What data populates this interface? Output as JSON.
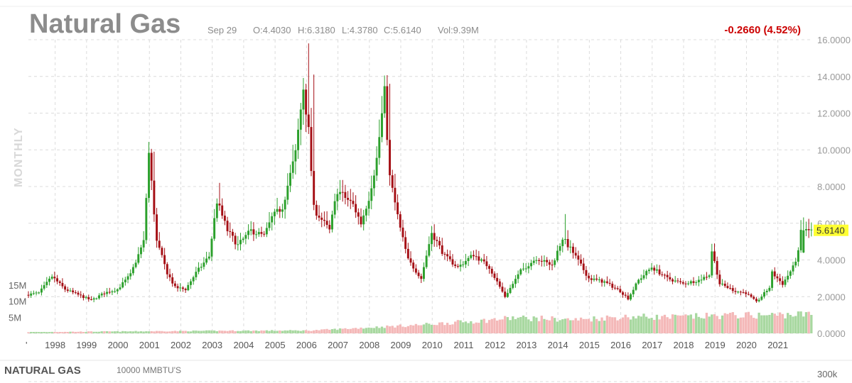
{
  "header": {
    "title": "Natural Gas",
    "date": "Sep 29",
    "open": "O:4.4030",
    "high": "H:6.3180",
    "low": "L:4.3780",
    "close": "C:5.6140",
    "volume": "Vol:9.39M",
    "change": "-0.2660 (4.52%)"
  },
  "sidebar": {
    "interval_label": "MONTHLY"
  },
  "last_price_badge": "5.6140",
  "footer": {
    "instrument": "NATURAL GAS",
    "unit": "10000 MMBTU'S",
    "axis_label": "300k"
  },
  "colors": {
    "up": "#2ca02c",
    "down": "#a50f15",
    "vol_up": "#a8d8a0",
    "vol_down": "#f4b8b8",
    "badge": "#ffff33",
    "change": "#cc0000"
  },
  "chart_data": {
    "type": "candlestick",
    "title": "Natural Gas",
    "interval": "monthly",
    "price_axis": {
      "ylim": [
        0,
        16
      ],
      "ticks": [
        "16.0000",
        "14.0000",
        "12.0000",
        "10.0000",
        "8.0000",
        "6.0000",
        "4.0000",
        "2.0000",
        "0.0000"
      ]
    },
    "volume_axis": {
      "ticks": [
        "15M",
        "10M",
        "5M"
      ]
    },
    "x_ticks": [
      "1998",
      "1999",
      "2000",
      "2001",
      "2002",
      "2003",
      "2004",
      "2005",
      "2006",
      "2007",
      "2008",
      "2009",
      "2010",
      "2011",
      "2012",
      "2013",
      "2014",
      "2015",
      "2016",
      "2017",
      "2018",
      "2019",
      "2020",
      "2021"
    ],
    "grid": true,
    "price_path": [
      [
        "1997-01",
        2.1
      ],
      [
        "1997-06",
        2.2
      ],
      [
        "1997-11",
        3.1
      ],
      [
        "1998-04",
        2.4
      ],
      [
        "1998-09",
        2.1
      ],
      [
        "1999-02",
        1.8
      ],
      [
        "1999-07",
        2.2
      ],
      [
        "1999-12",
        2.4
      ],
      [
        "2000-05",
        3.2
      ],
      [
        "2000-10",
        5.0
      ],
      [
        "2000-12",
        9.8
      ],
      [
        "2001-03",
        5.0
      ],
      [
        "2001-07",
        3.3
      ],
      [
        "2001-10",
        2.5
      ],
      [
        "2002-02",
        2.4
      ],
      [
        "2002-06",
        3.3
      ],
      [
        "2002-11",
        4.2
      ],
      [
        "2003-02",
        7.2
      ],
      [
        "2003-06",
        5.6
      ],
      [
        "2003-10",
        4.8
      ],
      [
        "2004-03",
        5.6
      ],
      [
        "2004-08",
        5.3
      ],
      [
        "2004-11",
        6.3
      ],
      [
        "2005-03",
        6.9
      ],
      [
        "2005-08",
        9.8
      ],
      [
        "2005-11",
        13.4
      ],
      [
        "2006-01",
        11.0
      ],
      [
        "2006-03",
        6.8
      ],
      [
        "2006-09",
        5.6
      ],
      [
        "2006-12",
        7.8
      ],
      [
        "2007-06",
        7.0
      ],
      [
        "2007-09",
        6.0
      ],
      [
        "2007-12",
        7.4
      ],
      [
        "2008-03",
        9.5
      ],
      [
        "2008-06",
        13.1
      ],
      [
        "2008-08",
        8.5
      ],
      [
        "2008-12",
        5.7
      ],
      [
        "2009-03",
        4.0
      ],
      [
        "2009-08",
        3.0
      ],
      [
        "2009-12",
        5.5
      ],
      [
        "2010-05",
        4.2
      ],
      [
        "2010-10",
        3.6
      ],
      [
        "2011-04",
        4.3
      ],
      [
        "2011-10",
        3.6
      ],
      [
        "2012-04",
        2.0
      ],
      [
        "2012-10",
        3.4
      ],
      [
        "2013-04",
        4.1
      ],
      [
        "2013-10",
        3.7
      ],
      [
        "2014-02",
        5.2
      ],
      [
        "2014-06",
        4.4
      ],
      [
        "2014-12",
        3.0
      ],
      [
        "2015-06",
        2.8
      ],
      [
        "2015-12",
        2.3
      ],
      [
        "2016-03",
        1.9
      ],
      [
        "2016-07",
        2.9
      ],
      [
        "2016-12",
        3.6
      ],
      [
        "2017-06",
        3.0
      ],
      [
        "2017-12",
        2.7
      ],
      [
        "2018-06",
        2.9
      ],
      [
        "2018-10",
        3.2
      ],
      [
        "2018-11",
        4.5
      ],
      [
        "2019-02",
        2.7
      ],
      [
        "2019-08",
        2.3
      ],
      [
        "2019-12",
        2.2
      ],
      [
        "2020-04",
        1.7
      ],
      [
        "2020-09",
        2.5
      ],
      [
        "2020-10",
        3.3
      ],
      [
        "2021-02",
        2.7
      ],
      [
        "2021-06",
        3.6
      ],
      [
        "2021-08",
        4.4
      ],
      [
        "2021-09",
        5.6
      ]
    ],
    "spikes": [
      [
        "2001-01",
        9.9
      ],
      [
        "2003-02",
        8.2
      ],
      [
        "2005-12",
        15.8
      ],
      [
        "2006-02",
        14.1
      ],
      [
        "2008-07",
        13.6
      ],
      [
        "2014-02",
        6.5
      ],
      [
        "2018-11",
        4.9
      ],
      [
        "2021-09",
        6.318
      ]
    ],
    "volume_path": [
      [
        "1997-01",
        0.4
      ],
      [
        "2000-01",
        0.6
      ],
      [
        "2003-01",
        0.8
      ],
      [
        "2006-01",
        0.9
      ],
      [
        "2008-01",
        1.9
      ],
      [
        "2009-06",
        2.6
      ],
      [
        "2010-06",
        3.3
      ],
      [
        "2011-06",
        3.9
      ],
      [
        "2012-06",
        4.8
      ],
      [
        "2013-06",
        4.6
      ],
      [
        "2014-06",
        4.2
      ],
      [
        "2015-06",
        4.9
      ],
      [
        "2016-06",
        5.2
      ],
      [
        "2017-06",
        5.0
      ],
      [
        "2018-06",
        5.3
      ],
      [
        "2019-06",
        5.6
      ],
      [
        "2020-06",
        5.6
      ],
      [
        "2021-06",
        5.9
      ]
    ],
    "last": {
      "date": "Sep 29",
      "open": 4.403,
      "high": 6.318,
      "low": 4.378,
      "close": 5.614,
      "volume": "9.39M"
    }
  }
}
